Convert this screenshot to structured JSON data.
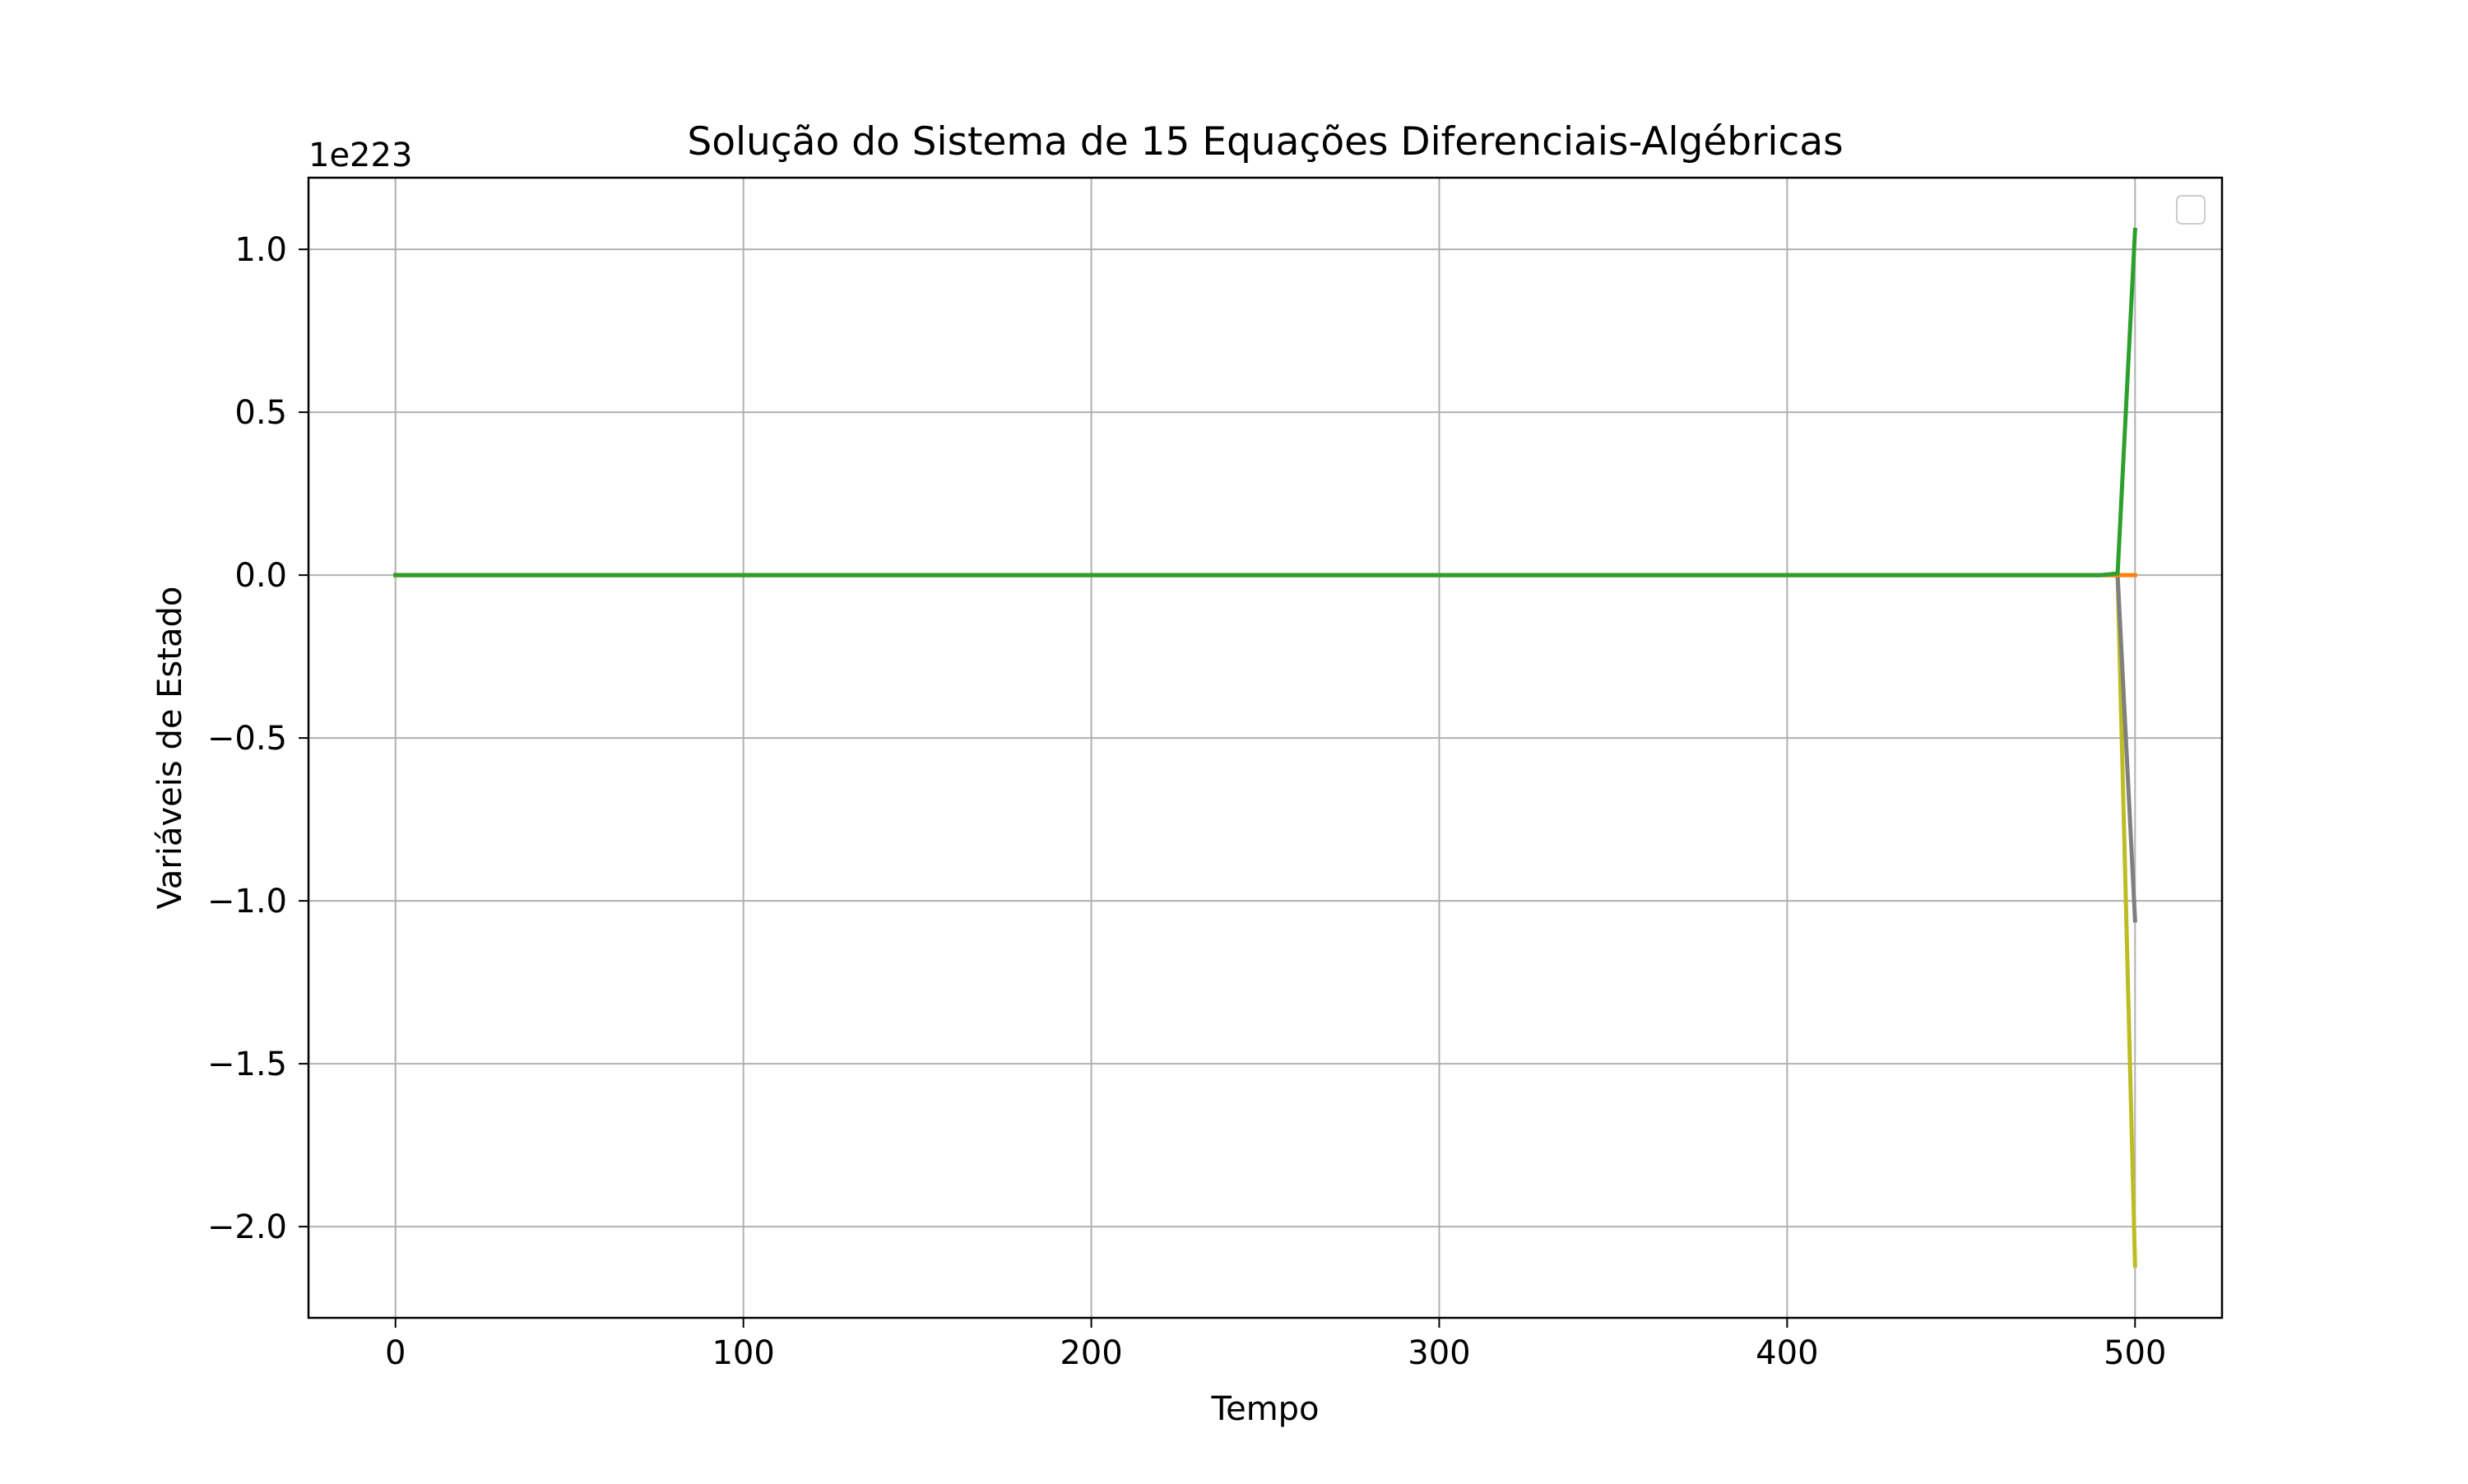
{
  "chart_data": {
    "type": "line",
    "title": "Solução do Sistema de 15 Equações Diferenciais-Algébricas",
    "xlabel": "Tempo",
    "ylabel": "Variáveis de Estado",
    "y_scale_label": "1e223",
    "xlim": [
      -25,
      525
    ],
    "ylim": [
      -2.28,
      1.22
    ],
    "x_ticks": [
      0,
      100,
      200,
      300,
      400,
      500
    ],
    "x_tick_labels": [
      "0",
      "100",
      "200",
      "300",
      "400",
      "500"
    ],
    "y_ticks": [
      1.0,
      0.5,
      0.0,
      -0.5,
      -1.0,
      -1.5,
      -2.0
    ],
    "y_tick_labels": [
      "1.0",
      "0.5",
      "0.0",
      "−0.5",
      "−1.0",
      "−1.5",
      "−2.0"
    ],
    "grid": true,
    "legend": {
      "placement": "top-right",
      "entries": []
    },
    "series": [
      {
        "color": "#bcbd22",
        "x": [
          0,
          100,
          200,
          300,
          400,
          490,
          495,
          500
        ],
        "values": [
          0,
          0,
          0,
          0,
          0,
          0,
          0,
          -2.12
        ]
      },
      {
        "color": "#7f7f7f",
        "x": [
          0,
          100,
          200,
          300,
          400,
          490,
          495,
          500
        ],
        "values": [
          0,
          0,
          0,
          0,
          0,
          0,
          0,
          -1.06
        ]
      },
      {
        "color": "#ff7f0e",
        "x": [
          0,
          100,
          200,
          300,
          400,
          490,
          495,
          500
        ],
        "values": [
          0,
          0,
          0,
          0,
          0,
          0,
          0,
          0
        ]
      },
      {
        "color": "#2ca02c",
        "x": [
          0,
          100,
          200,
          300,
          400,
          490,
          495,
          500
        ],
        "values": [
          0,
          0,
          0,
          0,
          0,
          0,
          0.005,
          1.06
        ]
      }
    ]
  }
}
